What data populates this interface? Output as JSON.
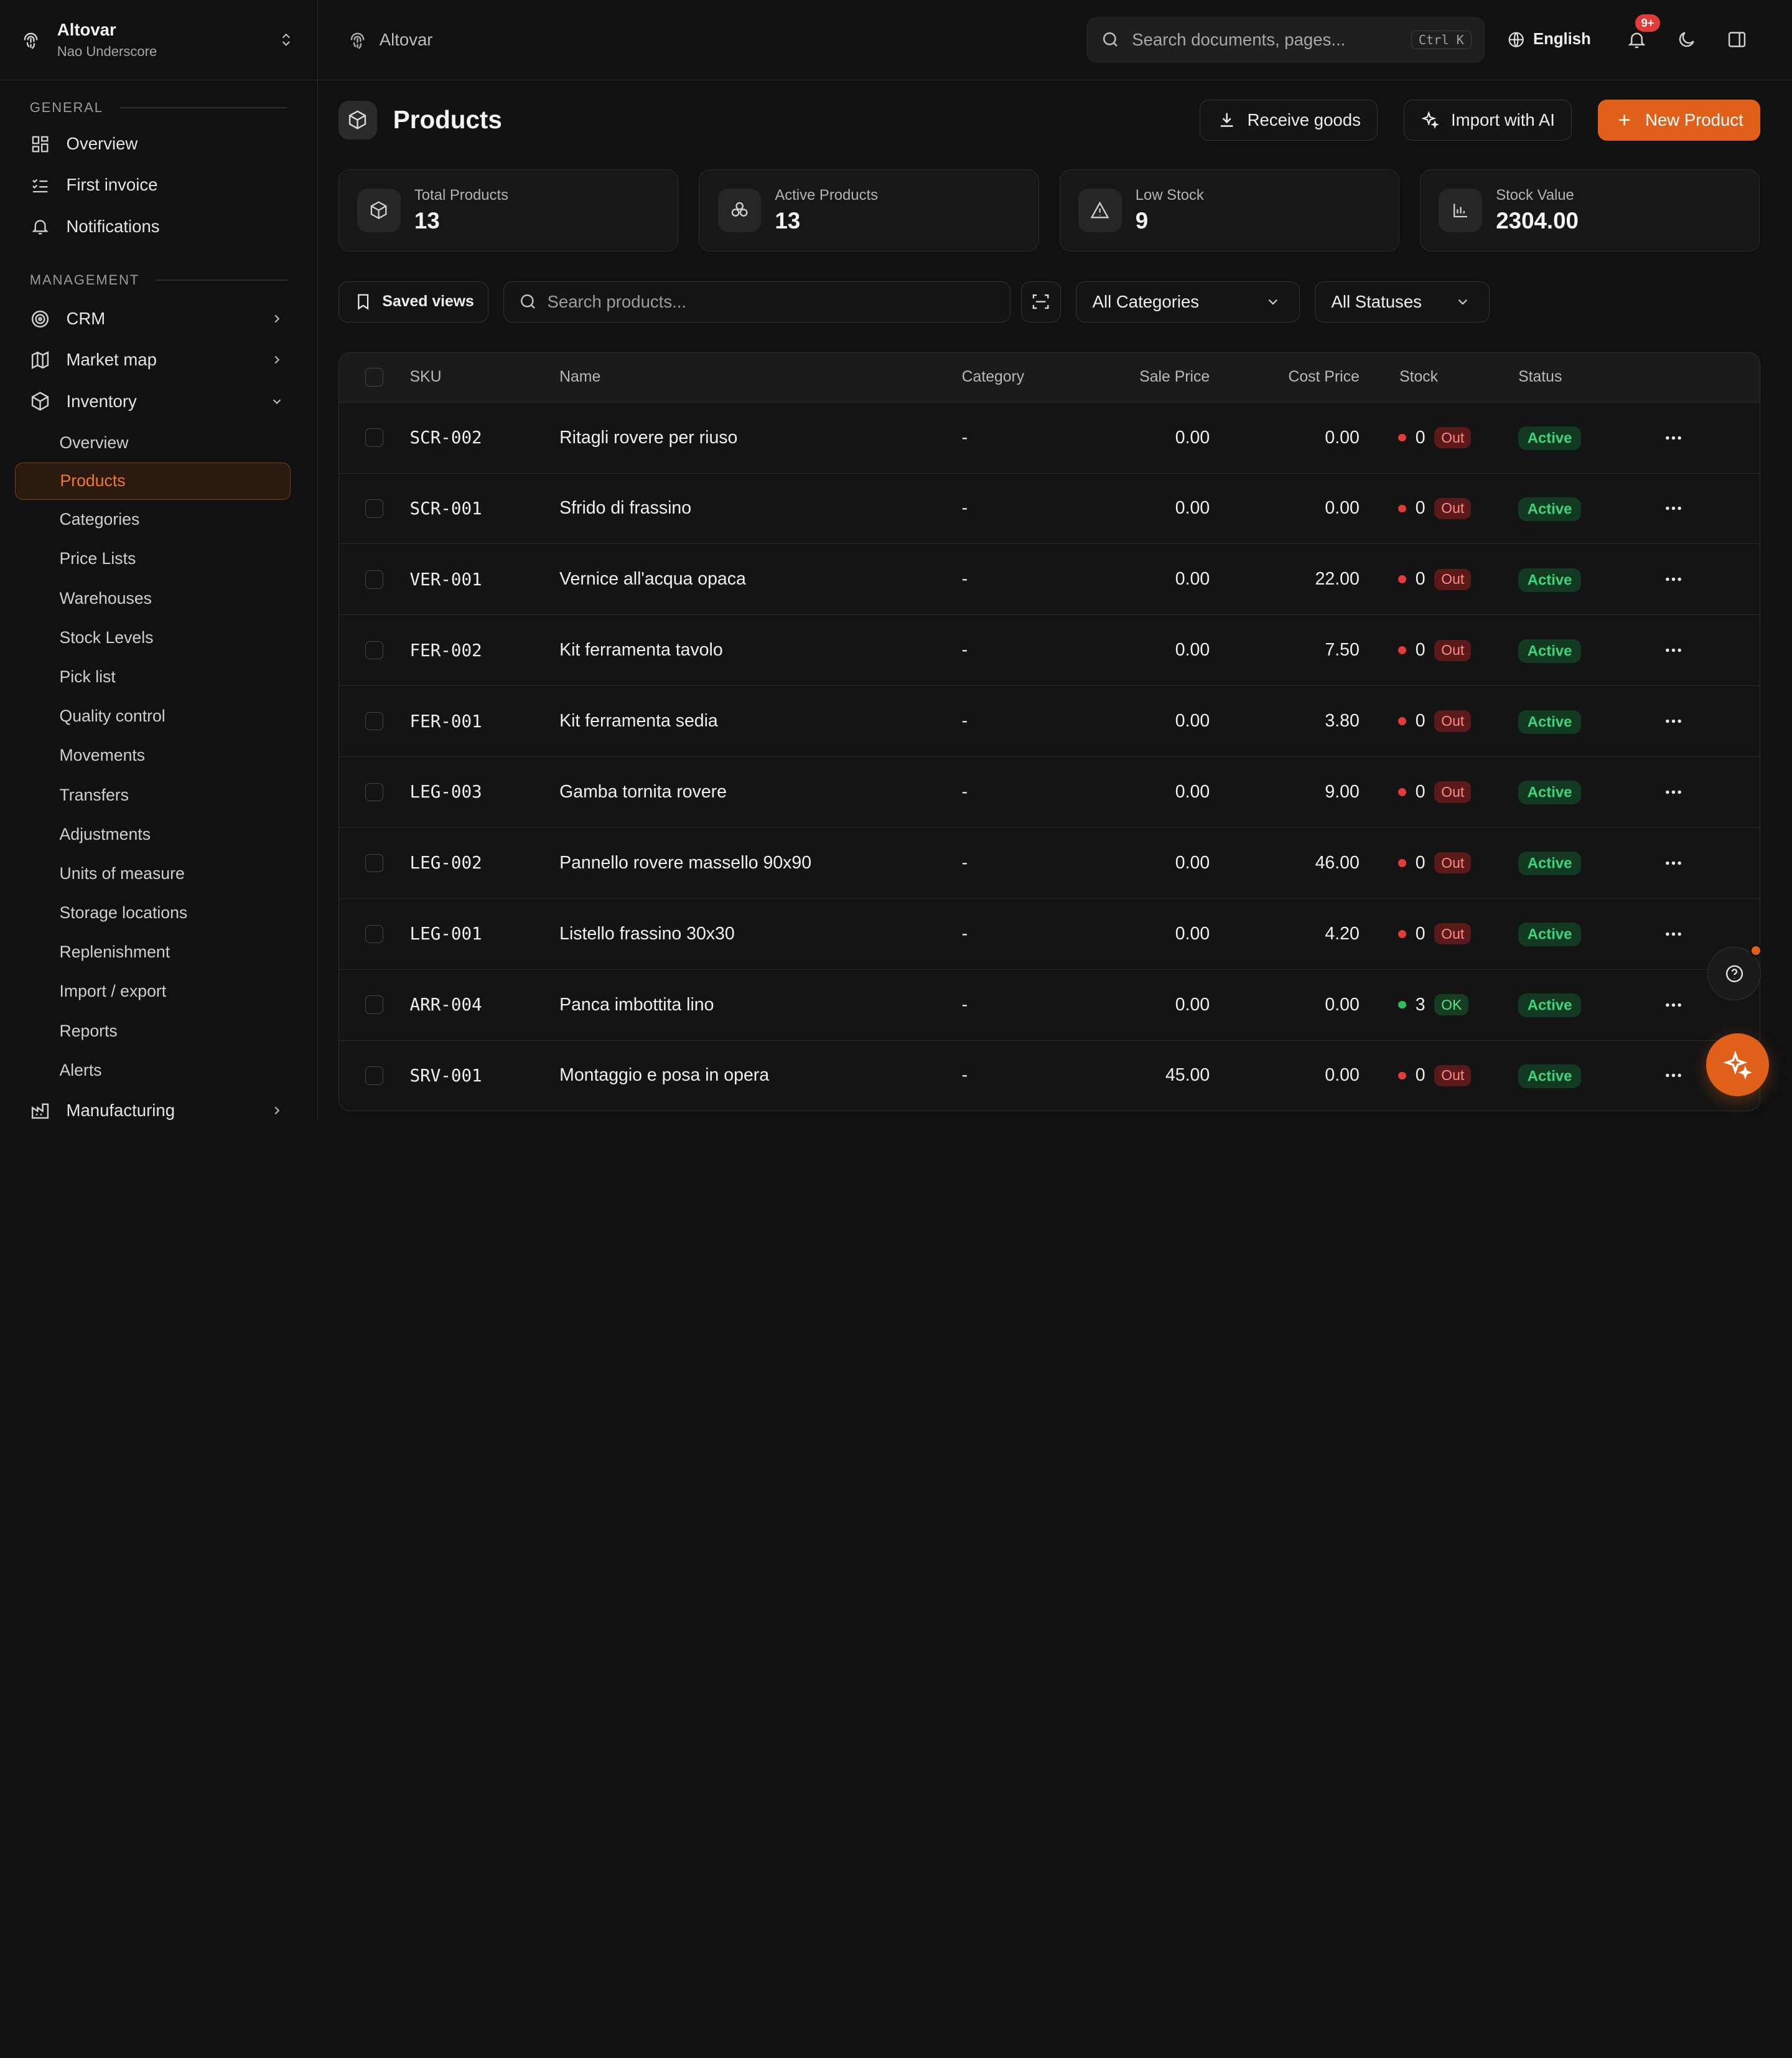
{
  "org": {
    "name": "Altovar",
    "sub": "Nao Underscore"
  },
  "sidebar": {
    "general_label": "GENERAL",
    "general": [
      {
        "label": "Overview",
        "icon": "grid-icon"
      },
      {
        "label": "First invoice",
        "icon": "checklist-icon"
      },
      {
        "label": "Notifications",
        "icon": "bell-icon"
      }
    ],
    "management_label": "MANAGEMENT",
    "management": [
      {
        "label": "CRM",
        "icon": "target-icon"
      },
      {
        "label": "Market map",
        "icon": "map-icon"
      },
      {
        "label": "Inventory",
        "icon": "box-icon"
      }
    ],
    "inventory_items": [
      "Overview",
      "Products",
      "Categories",
      "Price Lists",
      "Warehouses",
      "Stock Levels",
      "Pick list",
      "Quality control",
      "Movements",
      "Transfers",
      "Adjustments",
      "Units of measure",
      "Storage locations",
      "Replenishment",
      "Import / export",
      "Reports",
      "Alerts"
    ],
    "manufacturing": "Manufacturing"
  },
  "topbar": {
    "crumb": "Altovar",
    "search_placeholder": "Search documents, pages...",
    "shortcut": "Ctrl K",
    "language": "English",
    "notif_count": "9+"
  },
  "page": {
    "title": "Products",
    "receive": "Receive goods",
    "import_ai": "Import with AI",
    "new_product": "New Product"
  },
  "stats": [
    {
      "label": "Total Products",
      "value": "13"
    },
    {
      "label": "Active Products",
      "value": "13"
    },
    {
      "label": "Low Stock",
      "value": "9"
    },
    {
      "label": "Stock Value",
      "value": "2304.00"
    }
  ],
  "filters": {
    "saved_views": "Saved views",
    "search_placeholder": "Search products...",
    "categories": "All Categories",
    "statuses": "All Statuses"
  },
  "table": {
    "headers": {
      "sku": "SKU",
      "name": "Name",
      "category": "Category",
      "sale": "Sale Price",
      "cost": "Cost Price",
      "stock": "Stock",
      "status": "Status"
    },
    "rows": [
      {
        "sku": "SCR-002",
        "name": "Ritagli rovere per riuso",
        "category": "-",
        "sale": "0.00",
        "cost": "0.00",
        "stock": "0",
        "stock_state": "Out",
        "status": "Active"
      },
      {
        "sku": "SCR-001",
        "name": "Sfrido di frassino",
        "category": "-",
        "sale": "0.00",
        "cost": "0.00",
        "stock": "0",
        "stock_state": "Out",
        "status": "Active"
      },
      {
        "sku": "VER-001",
        "name": "Vernice all'acqua opaca",
        "category": "-",
        "sale": "0.00",
        "cost": "22.00",
        "stock": "0",
        "stock_state": "Out",
        "status": "Active"
      },
      {
        "sku": "FER-002",
        "name": "Kit ferramenta tavolo",
        "category": "-",
        "sale": "0.00",
        "cost": "7.50",
        "stock": "0",
        "stock_state": "Out",
        "status": "Active"
      },
      {
        "sku": "FER-001",
        "name": "Kit ferramenta sedia",
        "category": "-",
        "sale": "0.00",
        "cost": "3.80",
        "stock": "0",
        "stock_state": "Out",
        "status": "Active"
      },
      {
        "sku": "LEG-003",
        "name": "Gamba tornita rovere",
        "category": "-",
        "sale": "0.00",
        "cost": "9.00",
        "stock": "0",
        "stock_state": "Out",
        "status": "Active"
      },
      {
        "sku": "LEG-002",
        "name": "Pannello rovere massello 90x90",
        "category": "-",
        "sale": "0.00",
        "cost": "46.00",
        "stock": "0",
        "stock_state": "Out",
        "status": "Active"
      },
      {
        "sku": "LEG-001",
        "name": "Listello frassino 30x30",
        "category": "-",
        "sale": "0.00",
        "cost": "4.20",
        "stock": "0",
        "stock_state": "Out",
        "status": "Active"
      },
      {
        "sku": "ARR-004",
        "name": "Panca imbottita lino",
        "category": "-",
        "sale": "0.00",
        "cost": "0.00",
        "stock": "3",
        "stock_state": "OK",
        "status": "Active"
      },
      {
        "sku": "SRV-001",
        "name": "Montaggio e posa in opera",
        "category": "-",
        "sale": "45.00",
        "cost": "0.00",
        "stock": "0",
        "stock_state": "Out",
        "status": "Active"
      }
    ]
  },
  "colors": {
    "accent": "#e0601a",
    "out": "#e23b3b",
    "ok": "#2fbf5f",
    "active": "#3fd47a"
  }
}
